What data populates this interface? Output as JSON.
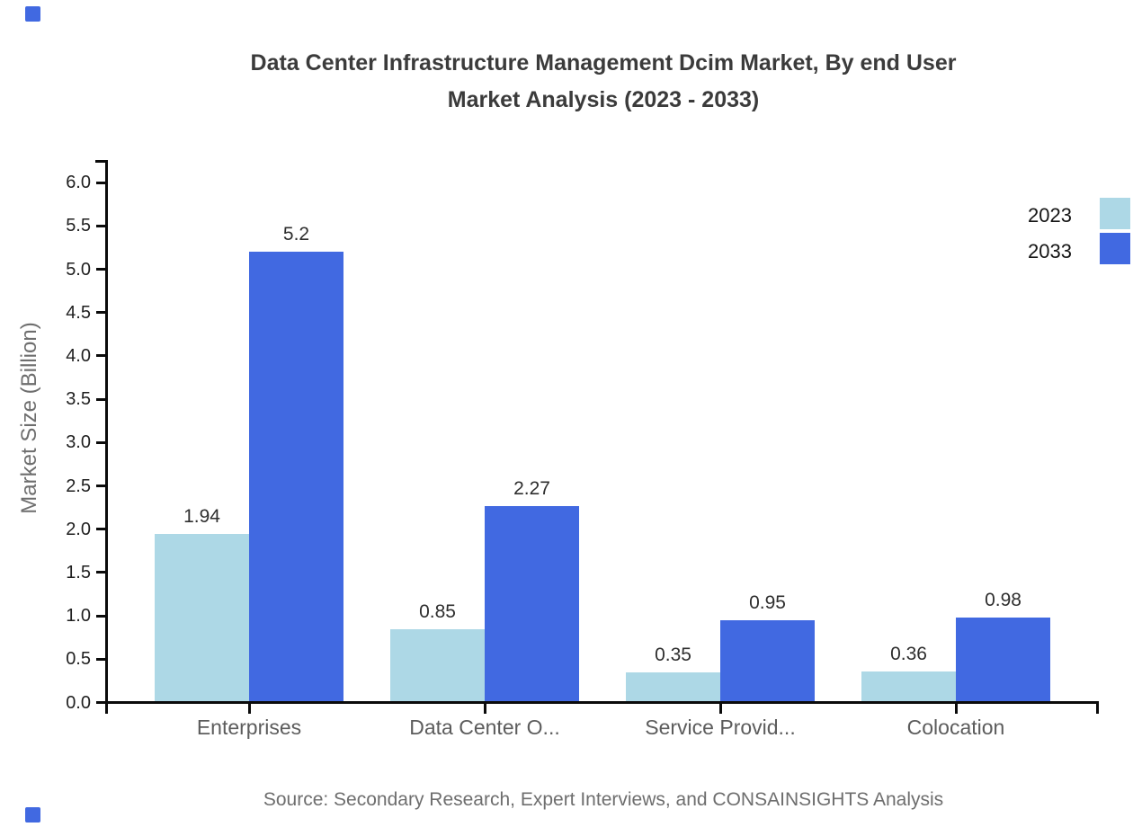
{
  "title": {
    "line1": "Data Center Infrastructure Management Dcim Market, By end User",
    "line2": "Market Analysis (2023 - 2033)"
  },
  "legend": [
    {
      "label": "2023",
      "color": "#ADD8E6"
    },
    {
      "label": "2033",
      "color": "#4169E1"
    }
  ],
  "chart_data": {
    "type": "bar",
    "categories": [
      "Enterprises",
      "Data Center O...",
      "Service Provid...",
      "Colocation"
    ],
    "series": [
      {
        "name": "2023",
        "color": "#ADD8E6",
        "values": [
          1.94,
          0.85,
          0.35,
          0.36
        ],
        "labels": [
          "1.94",
          "0.85",
          "0.35",
          "0.36"
        ]
      },
      {
        "name": "2033",
        "color": "#4169E1",
        "values": [
          5.2,
          2.27,
          0.95,
          0.98
        ],
        "labels": [
          "5.2",
          "2.27",
          "0.95",
          "0.98"
        ]
      }
    ],
    "title": "Data Center Infrastructure Management Dcim Market, By end User Market Analysis (2023 - 2033)",
    "xlabel": "",
    "ylabel": "Market Size (Billion)",
    "ylim": [
      0,
      6.0
    ],
    "ytick_step": 0.5,
    "grid": false,
    "legend_position": "top-right",
    "value_labels_shown": true
  },
  "source": "Source: Secondary Research, Expert Interviews, and CONSAINSIGHTS Analysis",
  "colors": {
    "accent": "#4169E1",
    "series_2023": "#ADD8E6",
    "series_2033": "#4169E1",
    "axis": "#0b0b0b"
  }
}
